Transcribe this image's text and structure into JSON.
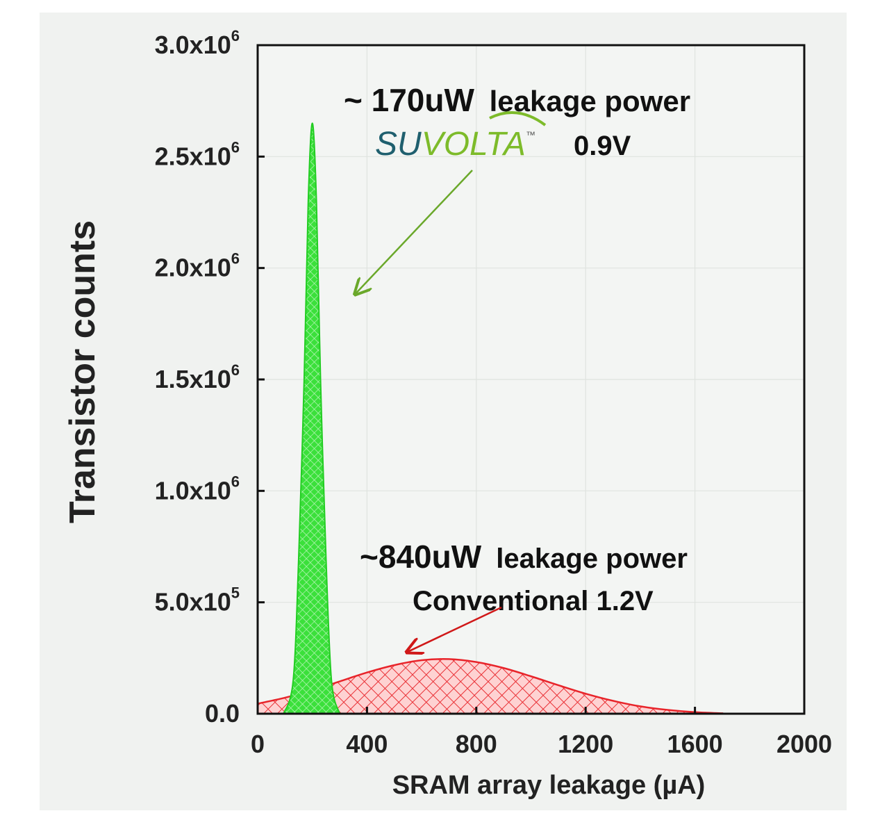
{
  "chart_data": {
    "type": "area",
    "xlabel": "SRAM array leakage (µA)",
    "ylabel": "Transistor counts",
    "xlim": [
      0,
      2000
    ],
    "ylim": [
      0,
      3000000
    ],
    "x_ticks": [
      "0",
      "400",
      "800",
      "1200",
      "1600",
      "2000"
    ],
    "y_ticks": [
      {
        "base": "0.0",
        "exp": ""
      },
      {
        "base": "5.0x10",
        "exp": "5"
      },
      {
        "base": "1.0x10",
        "exp": "6"
      },
      {
        "base": "1.5x10",
        "exp": "6"
      },
      {
        "base": "2.0x10",
        "exp": "6"
      },
      {
        "base": "2.5x10",
        "exp": "6"
      },
      {
        "base": "3.0x10",
        "exp": "6"
      }
    ],
    "grid": true,
    "series": [
      {
        "name": "Conventional 1.2V",
        "color": "#e8242a",
        "fill": "crosshatch",
        "points": [
          [
            0,
            45000
          ],
          [
            100,
            72000
          ],
          [
            200,
            105000
          ],
          [
            300,
            145000
          ],
          [
            400,
            185000
          ],
          [
            500,
            218000
          ],
          [
            600,
            240000
          ],
          [
            700,
            245000
          ],
          [
            800,
            232000
          ],
          [
            900,
            205000
          ],
          [
            1000,
            168000
          ],
          [
            1100,
            128000
          ],
          [
            1200,
            90000
          ],
          [
            1300,
            58000
          ],
          [
            1400,
            33000
          ],
          [
            1500,
            17000
          ],
          [
            1600,
            7000
          ],
          [
            1700,
            2000
          ]
        ]
      },
      {
        "name": "SuVolta 0.9V",
        "color": "#22dd22",
        "fill": "crosshatch",
        "points": [
          [
            95,
            0
          ],
          [
            130,
            150000
          ],
          [
            150,
            700000
          ],
          [
            170,
            1500000
          ],
          [
            185,
            2300000
          ],
          [
            200,
            2650000
          ],
          [
            215,
            2300000
          ],
          [
            230,
            1500000
          ],
          [
            250,
            700000
          ],
          [
            270,
            150000
          ],
          [
            300,
            0
          ]
        ]
      }
    ],
    "annotations": {
      "suvolta": {
        "power_value": "~ 170uW",
        "power_label": "leakage power",
        "logo_su": "SU",
        "logo_volta": "VOLTA",
        "logo_tm": "™",
        "voltage": "0.9V",
        "logo_colors": {
          "su": "#1f5f6e",
          "volta": "#7dbb2a"
        },
        "arrow_target": [
          280,
          1820000
        ]
      },
      "conventional": {
        "power_value": "~840uW",
        "power_label": "leakage power",
        "label": "Conventional 1.2V",
        "arrow_target": [
          800,
          245000
        ]
      }
    }
  }
}
